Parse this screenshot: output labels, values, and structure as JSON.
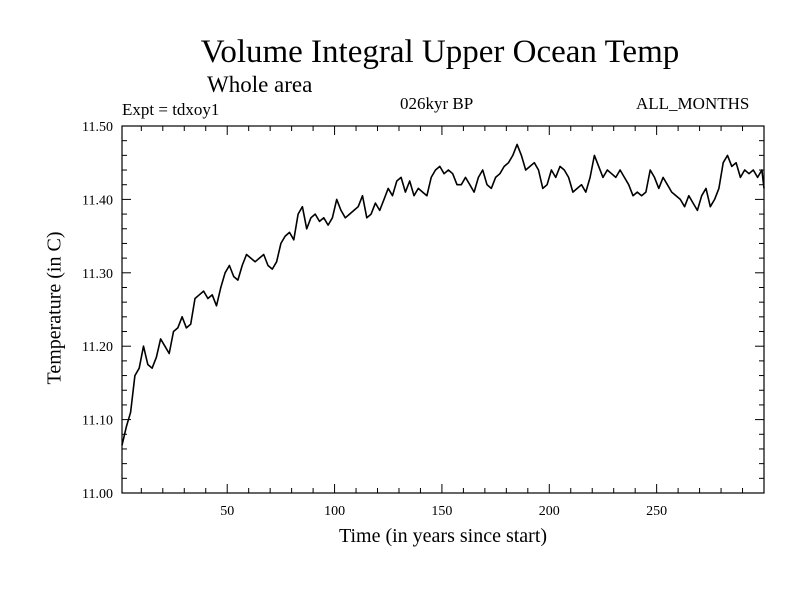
{
  "chart_data": {
    "type": "line",
    "title": "Volume Integral Upper Ocean Temp",
    "subtitle": "Whole area",
    "annotations": {
      "left": "Expt = tdxoy1",
      "center": "026kyr BP",
      "right": "ALL_MONTHS"
    },
    "xlabel": "Time (in years since start)",
    "ylabel": "Temperature (in C)",
    "xlim": [
      1,
      300
    ],
    "ylim": [
      11.0,
      11.5
    ],
    "x_ticks": [
      50,
      100,
      150,
      200,
      250
    ],
    "x_tick_labels": [
      "50",
      "100",
      "150",
      "200",
      "250"
    ],
    "y_ticks": [
      11.0,
      11.1,
      11.2,
      11.3,
      11.4,
      11.5
    ],
    "y_tick_labels": [
      "11.00",
      "11.10",
      "11.20",
      "11.30",
      "11.40",
      "11.50"
    ],
    "grid": false,
    "series": [
      {
        "name": "Volume Integral Upper Ocean Temp",
        "color": "#000000",
        "x": [
          1,
          3,
          5,
          7,
          9,
          11,
          13,
          15,
          17,
          19,
          21,
          23,
          25,
          27,
          29,
          31,
          33,
          35,
          37,
          39,
          41,
          43,
          45,
          47,
          49,
          51,
          53,
          55,
          57,
          59,
          61,
          63,
          65,
          67,
          69,
          71,
          73,
          75,
          77,
          79,
          81,
          83,
          85,
          87,
          89,
          91,
          93,
          95,
          97,
          99,
          101,
          103,
          105,
          107,
          109,
          111,
          113,
          115,
          117,
          119,
          121,
          123,
          125,
          127,
          129,
          131,
          133,
          135,
          137,
          139,
          141,
          143,
          145,
          147,
          149,
          151,
          153,
          155,
          157,
          159,
          161,
          163,
          165,
          167,
          169,
          171,
          173,
          175,
          177,
          179,
          181,
          183,
          185,
          187,
          189,
          191,
          193,
          195,
          197,
          199,
          201,
          203,
          205,
          207,
          209,
          211,
          213,
          215,
          217,
          219,
          221,
          223,
          225,
          227,
          229,
          231,
          233,
          235,
          237,
          239,
          241,
          243,
          245,
          247,
          249,
          251,
          253,
          255,
          257,
          259,
          261,
          263,
          265,
          267,
          269,
          271,
          273,
          275,
          277,
          279,
          281,
          283,
          285,
          287,
          289,
          291,
          293,
          295,
          297,
          299,
          300
        ],
        "values": [
          11.065,
          11.09,
          11.11,
          11.16,
          11.17,
          11.2,
          11.175,
          11.17,
          11.185,
          11.21,
          11.2,
          11.19,
          11.22,
          11.225,
          11.24,
          11.225,
          11.23,
          11.265,
          11.27,
          11.275,
          11.265,
          11.27,
          11.255,
          11.28,
          11.3,
          11.31,
          11.295,
          11.29,
          11.31,
          11.325,
          11.32,
          11.315,
          11.32,
          11.325,
          11.31,
          11.305,
          11.315,
          11.34,
          11.35,
          11.355,
          11.345,
          11.38,
          11.39,
          11.36,
          11.375,
          11.38,
          11.37,
          11.375,
          11.365,
          11.375,
          11.4,
          11.385,
          11.375,
          11.38,
          11.385,
          11.39,
          11.405,
          11.375,
          11.38,
          11.395,
          11.385,
          11.4,
          11.415,
          11.405,
          11.425,
          11.43,
          11.41,
          11.425,
          11.405,
          11.415,
          11.41,
          11.405,
          11.43,
          11.44,
          11.445,
          11.435,
          11.44,
          11.435,
          11.42,
          11.42,
          11.43,
          11.42,
          11.41,
          11.43,
          11.44,
          11.42,
          11.415,
          11.43,
          11.435,
          11.445,
          11.45,
          11.46,
          11.475,
          11.46,
          11.44,
          11.445,
          11.45,
          11.44,
          11.415,
          11.42,
          11.44,
          11.43,
          11.445,
          11.44,
          11.43,
          11.41,
          11.415,
          11.42,
          11.41,
          11.43,
          11.46,
          11.445,
          11.43,
          11.44,
          11.435,
          11.43,
          11.44,
          11.43,
          11.42,
          11.405,
          11.41,
          11.405,
          11.41,
          11.44,
          11.43,
          11.415,
          11.43,
          11.42,
          11.41,
          11.405,
          11.4,
          11.39,
          11.405,
          11.395,
          11.385,
          11.405,
          11.415,
          11.39,
          11.4,
          11.415,
          11.45,
          11.46,
          11.445,
          11.45,
          11.43,
          11.44,
          11.435,
          11.44,
          11.43,
          11.44,
          11.415
        ]
      }
    ]
  }
}
